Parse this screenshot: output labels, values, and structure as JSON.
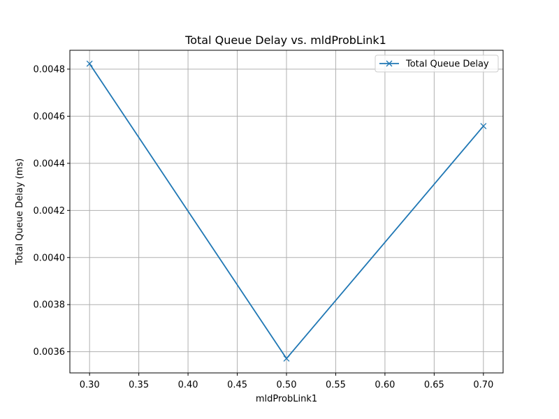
{
  "chart_data": {
    "type": "line",
    "title": "Total Queue Delay vs. mldProbLink1",
    "xlabel": "mldProbLink1",
    "ylabel": "Total Queue Delay (ms)",
    "xlim": [
      0.28,
      0.72
    ],
    "ylim": [
      0.00351,
      0.00488
    ],
    "xticks": [
      0.3,
      0.35,
      0.4,
      0.45,
      0.5,
      0.55,
      0.6,
      0.65,
      0.7
    ],
    "xtick_labels": [
      "0.30",
      "0.35",
      "0.40",
      "0.45",
      "0.50",
      "0.55",
      "0.60",
      "0.65",
      "0.70"
    ],
    "yticks": [
      0.0036,
      0.0038,
      0.004,
      0.0042,
      0.0044,
      0.0046,
      0.0048
    ],
    "ytick_labels": [
      "0.0036",
      "0.0038",
      "0.0040",
      "0.0042",
      "0.0044",
      "0.0046",
      "0.0048"
    ],
    "grid": true,
    "legend_position": "top-right",
    "series": [
      {
        "name": "Total Queue Delay",
        "color": "#1f77b4",
        "marker": "x",
        "x": [
          0.3,
          0.5,
          0.7
        ],
        "y": [
          0.004823,
          0.003571,
          0.004558
        ]
      }
    ]
  }
}
